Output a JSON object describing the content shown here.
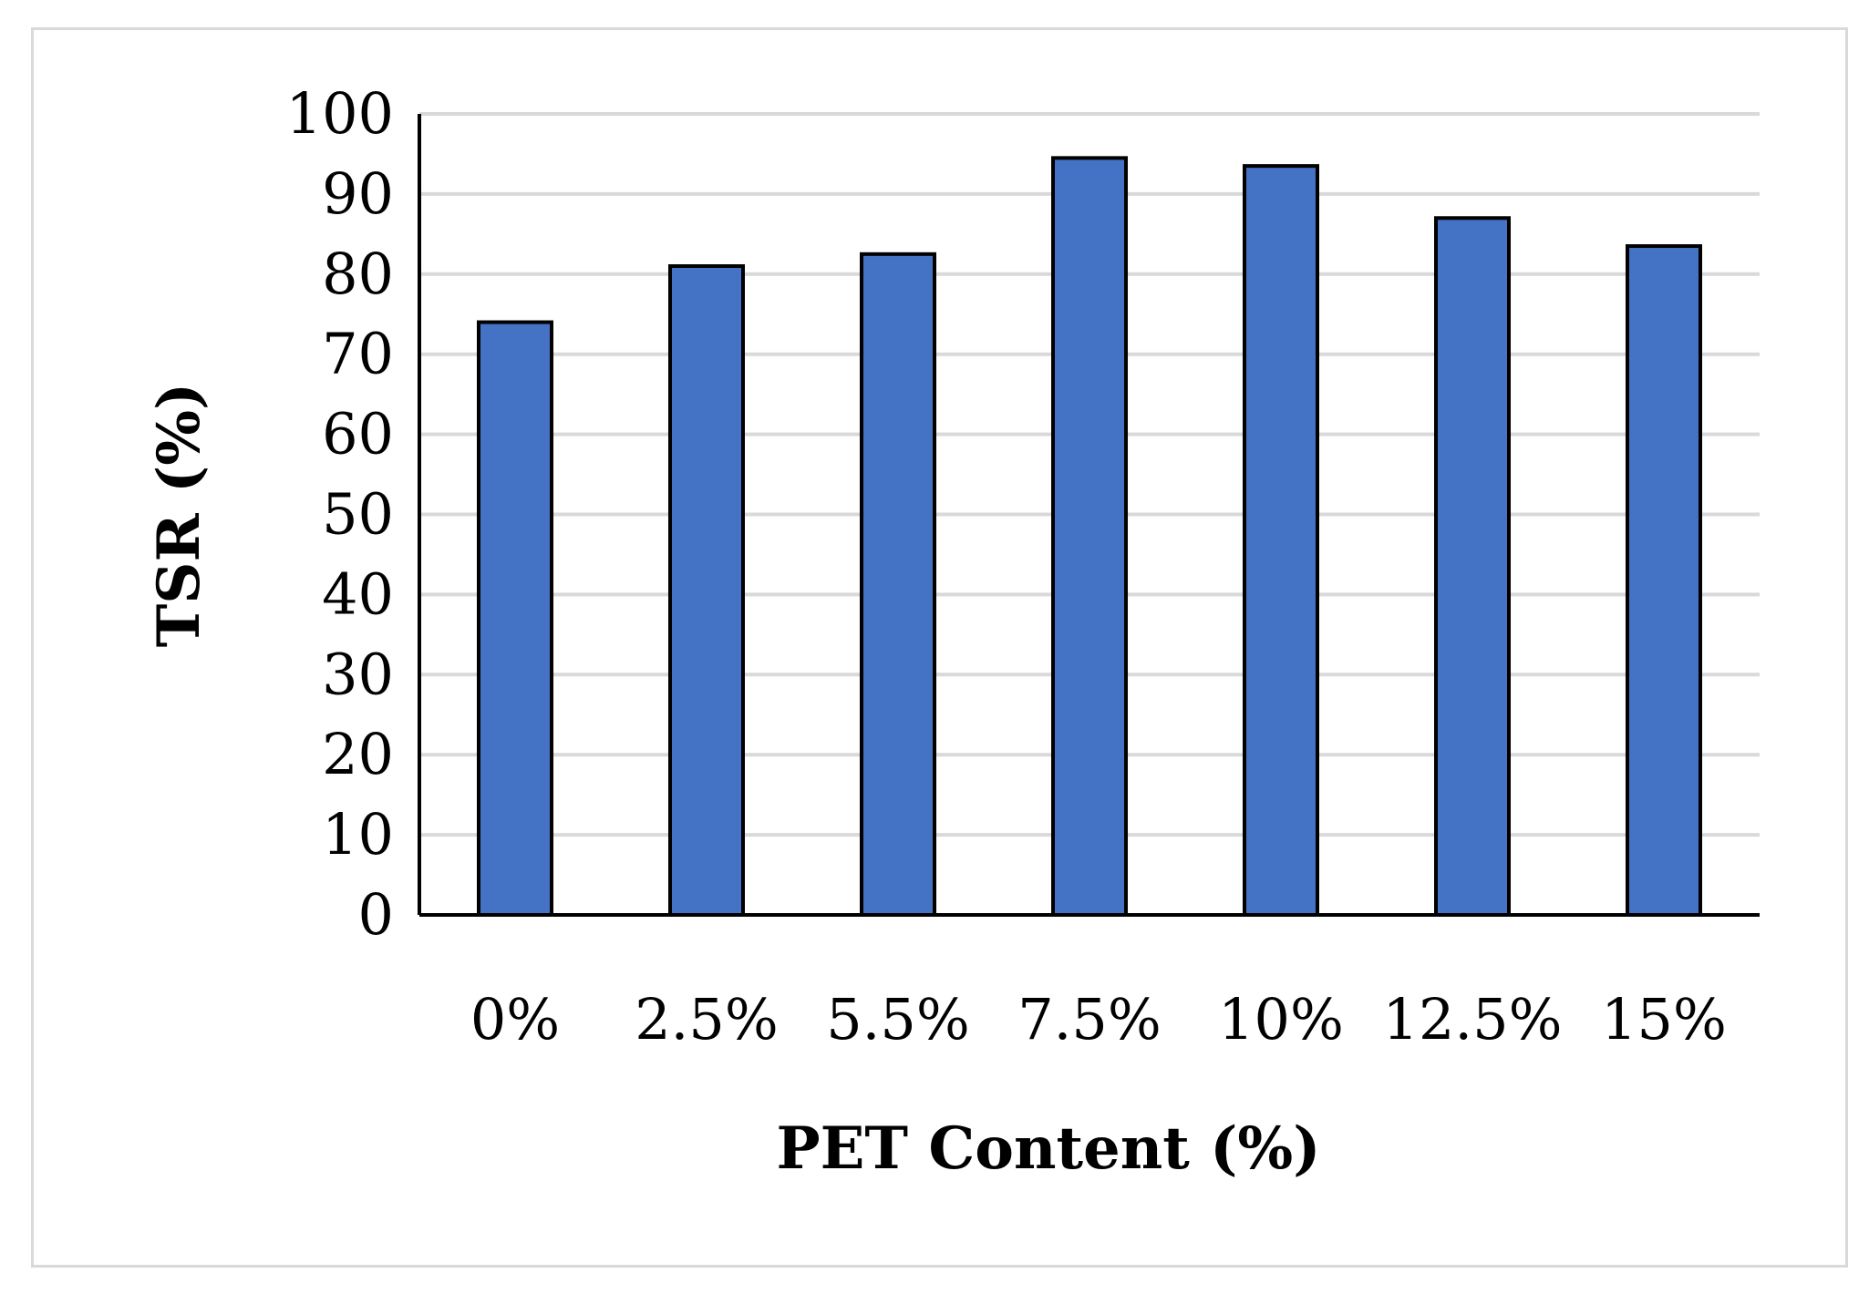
{
  "chart_data": {
    "type": "bar",
    "categories": [
      "0%",
      "2.5%",
      "5.5%",
      "7.5%",
      "10%",
      "12.5%",
      "15%"
    ],
    "values": [
      74,
      81,
      82.5,
      94.5,
      93.5,
      87,
      83.5
    ],
    "title": "",
    "xlabel": "PET Content (%)",
    "ylabel": "TSR (%)",
    "ylim": [
      0,
      100
    ],
    "yticks": [
      "0",
      "10",
      "20",
      "30",
      "40",
      "50",
      "60",
      "70",
      "80",
      "90",
      "100"
    ],
    "grid": true,
    "legend": "none",
    "colors": {
      "bar_fill": "#4472c4",
      "bar_stroke": "#000000",
      "gridline": "#d9d9d9",
      "axis": "#000000",
      "frame": "#d9d9d9"
    }
  }
}
